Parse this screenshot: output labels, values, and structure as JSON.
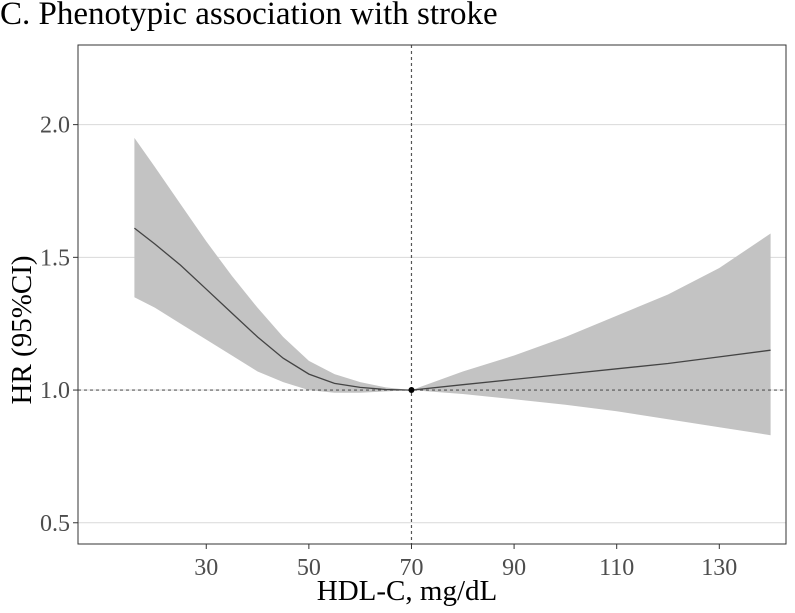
{
  "chart_data": {
    "type": "line",
    "title": "C. Phenotypic association with stroke",
    "xlabel": "HDL-C, mg/dL",
    "ylabel": "HR (95%CI)",
    "xlim": [
      5,
      143
    ],
    "ylim": [
      0.42,
      2.3
    ],
    "x_ticks": [
      30,
      50,
      70,
      90,
      110,
      130
    ],
    "x_tick_labels": [
      "30",
      "50",
      "70",
      "90",
      "110",
      "130"
    ],
    "y_ticks": [
      0.5,
      1.0,
      1.5,
      2.0
    ],
    "y_tick_labels": [
      "0.5",
      "1.0",
      "1.5",
      "2.0"
    ],
    "grid": "horizontal",
    "reference_lines": {
      "x": 70,
      "y": 1.0
    },
    "reference_point": {
      "x": 70,
      "y": 1.0
    },
    "series": [
      {
        "x": [
          16,
          20,
          25,
          30,
          35,
          40,
          45,
          50,
          55,
          60,
          65,
          70,
          80,
          90,
          100,
          110,
          120,
          130,
          140
        ],
        "y": [
          1.61,
          1.55,
          1.47,
          1.38,
          1.29,
          1.2,
          1.12,
          1.06,
          1.025,
          1.01,
          1.002,
          1.0,
          1.02,
          1.04,
          1.06,
          1.08,
          1.1,
          1.125,
          1.15
        ],
        "lower": [
          1.35,
          1.31,
          1.25,
          1.19,
          1.13,
          1.07,
          1.03,
          1.0,
          0.99,
          0.99,
          0.995,
          1.0,
          0.985,
          0.965,
          0.945,
          0.92,
          0.89,
          0.86,
          0.83
        ],
        "upper": [
          1.95,
          1.84,
          1.7,
          1.56,
          1.43,
          1.31,
          1.2,
          1.11,
          1.06,
          1.03,
          1.01,
          1.0,
          1.07,
          1.13,
          1.2,
          1.28,
          1.36,
          1.46,
          1.59
        ]
      }
    ],
    "colors": {
      "band": "#c3c3c3",
      "line": "#444444",
      "grid": "#d9d9d9",
      "reference": "#555555",
      "axis": "#333333"
    }
  }
}
